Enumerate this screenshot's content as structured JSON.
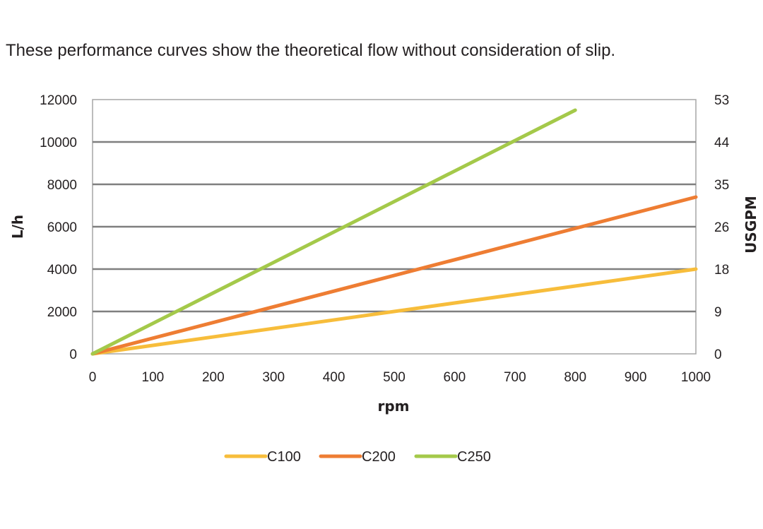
{
  "caption": "These performance curves show the theoretical flow without consideration of slip.",
  "chart_data": {
    "type": "line",
    "title": "",
    "xlabel": "rpm",
    "ylabel": "L/h",
    "y2label": "USGPM",
    "xlim": [
      0,
      1000
    ],
    "ylim": [
      0,
      12000
    ],
    "x_ticks": [
      "0",
      "100",
      "200",
      "300",
      "400",
      "500",
      "600",
      "700",
      "800",
      "900",
      "1000"
    ],
    "y_ticks": [
      "0",
      "2000",
      "4000",
      "6000",
      "8000",
      "10000",
      "12000"
    ],
    "y2_ticks": [
      "0",
      "9",
      "18",
      "26",
      "35",
      "44",
      "53"
    ],
    "grid": true,
    "legend_position": "bottom",
    "series": [
      {
        "name": "C100",
        "color": "#f7bd3b",
        "x": [
          0,
          1000
        ],
        "y": [
          0,
          4000
        ]
      },
      {
        "name": "C200",
        "color": "#ee7d33",
        "x": [
          0,
          1000
        ],
        "y": [
          0,
          7400
        ]
      },
      {
        "name": "C250",
        "color": "#a4c94a",
        "x": [
          0,
          800
        ],
        "y": [
          0,
          11500
        ]
      }
    ]
  }
}
